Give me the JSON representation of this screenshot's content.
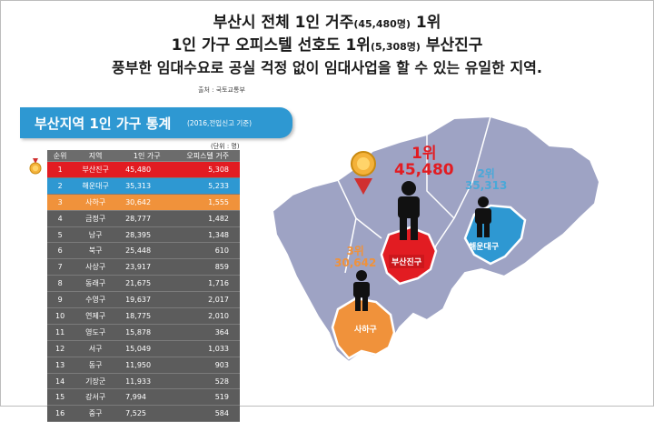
{
  "headline": {
    "line1_main": "부산시 전체 1인 거주",
    "line1_paren": "(45,480명)",
    "line1_tail": " 1위",
    "line2_main": "1인 가구 오피스텔 선호도 1위",
    "line2_paren": "(5,308명)",
    "line2_tail": " 부산진구",
    "line3": "풍부한 임대수요로 공실 걱정 없이 임대사업을 할 수 있는 유일한 지역."
  },
  "source": "출처 : 국토교통부",
  "banner": {
    "title": "부산지역 1인 가구 통계",
    "subtitle": "(2016,전입신고 기준)"
  },
  "unit": "(단위 : 명)",
  "table": {
    "headers": [
      "순위",
      "지역",
      "1인 가구",
      "오피스텔 거주"
    ],
    "rows": [
      [
        "1",
        "부산진구",
        "45,480",
        "5,308"
      ],
      [
        "2",
        "해운대구",
        "35,313",
        "5,233"
      ],
      [
        "3",
        "사하구",
        "30,642",
        "1,555"
      ],
      [
        "4",
        "금정구",
        "28,777",
        "1,482"
      ],
      [
        "5",
        "남구",
        "28,395",
        "1,348"
      ],
      [
        "6",
        "북구",
        "25,448",
        "610"
      ],
      [
        "7",
        "사상구",
        "23,917",
        "859"
      ],
      [
        "8",
        "동래구",
        "21,675",
        "1,716"
      ],
      [
        "9",
        "수영구",
        "19,637",
        "2,017"
      ],
      [
        "10",
        "연제구",
        "18,775",
        "2,010"
      ],
      [
        "11",
        "영도구",
        "15,878",
        "364"
      ],
      [
        "12",
        "서구",
        "15,049",
        "1,033"
      ],
      [
        "13",
        "동구",
        "11,950",
        "903"
      ],
      [
        "14",
        "기장군",
        "11,933",
        "528"
      ],
      [
        "15",
        "강서구",
        "7,994",
        "519"
      ],
      [
        "16",
        "중구",
        "7,525",
        "584"
      ]
    ]
  },
  "map": {
    "first": {
      "rank": "1위",
      "value": "45,480",
      "district": "부산진구"
    },
    "second": {
      "rank": "2위",
      "value": "35,313",
      "district": "해운대구"
    },
    "third": {
      "rank": "3위",
      "value": "30,642",
      "district": "사하구"
    }
  },
  "colors": {
    "red": "#e21c22",
    "blue": "#2e98d2",
    "orange": "#f0923b",
    "map_gray": "#9ea3c4"
  },
  "icons": [
    "medal-icon",
    "person-icon"
  ]
}
